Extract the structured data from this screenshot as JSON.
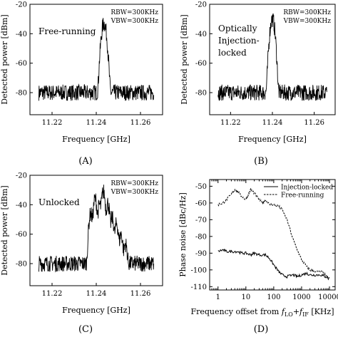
{
  "panels": [
    {
      "caption": "(A)",
      "annotation_lines": [
        "Free-running"
      ],
      "settings": [
        "RBW=300KHz",
        "VBW=300KHz"
      ]
    },
    {
      "caption": "(B)",
      "annotation_lines": [
        "Optically",
        "Injection-",
        "locked"
      ],
      "settings": [
        "RBW=300KHz",
        "VBW=300KHz"
      ]
    },
    {
      "caption": "(C)",
      "annotation_lines": [
        "Unlocked"
      ],
      "settings": [
        "RBW=300KHz",
        "VBW=300KHz"
      ]
    },
    {
      "caption": "(D)",
      "annotation_lines": [],
      "settings": []
    }
  ],
  "chart_data": [
    {
      "type": "line",
      "panel": "A",
      "xlabel": "Frequency [GHz]",
      "ylabel": "Detected power [dBm]",
      "xlim": [
        11.21,
        11.27
      ],
      "ylim": [
        -95,
        -20
      ],
      "x_ticks": [
        11.22,
        11.24,
        11.26
      ],
      "y_ticks": [
        -20,
        -40,
        -60,
        -80
      ],
      "noise_floor_dbm": -80,
      "series": [
        {
          "peaks": [
            {
              "x": 11.2435,
              "y": -33
            }
          ]
        }
      ]
    },
    {
      "type": "line",
      "panel": "B",
      "xlabel": "Frequency [GHz]",
      "ylabel": "Detected power [dBm]",
      "xlim": [
        11.21,
        11.27
      ],
      "ylim": [
        -95,
        -20
      ],
      "x_ticks": [
        11.22,
        11.24,
        11.26
      ],
      "y_ticks": [
        -20,
        -40,
        -60,
        -80
      ],
      "noise_floor_dbm": -80,
      "series": [
        {
          "peaks": [
            {
              "x": 11.24,
              "y": -30
            }
          ]
        }
      ]
    },
    {
      "type": "line",
      "panel": "C",
      "xlabel": "Frequency [GHz]",
      "ylabel": "Detected power [dBm]",
      "xlim": [
        11.21,
        11.27
      ],
      "ylim": [
        -95,
        -20
      ],
      "x_ticks": [
        11.22,
        11.24,
        11.26
      ],
      "y_ticks": [
        -20,
        -40,
        -60,
        -80
      ],
      "noise_floor_dbm": -80,
      "series": [
        {
          "peaks": [
            {
              "x": 11.2375,
              "y": -46
            },
            {
              "x": 11.2395,
              "y": -36
            },
            {
              "x": 11.2415,
              "y": -40
            },
            {
              "x": 11.2432,
              "y": -31
            },
            {
              "x": 11.2452,
              "y": -39
            },
            {
              "x": 11.2472,
              "y": -49
            },
            {
              "x": 11.2492,
              "y": -53
            },
            {
              "x": 11.2512,
              "y": -60
            },
            {
              "x": 11.2532,
              "y": -67
            }
          ]
        }
      ]
    },
    {
      "type": "line",
      "panel": "D",
      "xlabel": "Frequency offset from f_LO+f_IF [KHz]",
      "xlabel_parts": {
        "prefix": "Frequency offset from ",
        "f": "f",
        "sub1": "LO",
        "plus": "+",
        "sub2": "IF",
        "suffix": " [KHz]"
      },
      "ylabel": "Phase noise [dBc/Hz]",
      "x_scale": "log",
      "xlim": [
        0.5,
        16000
      ],
      "ylim": [
        -112,
        -46
      ],
      "x_ticks": [
        1,
        10,
        100,
        1000,
        10000
      ],
      "x_tick_labels": [
        "1",
        "10",
        "100",
        "1000",
        "10000"
      ],
      "y_ticks": [
        -50,
        -60,
        -70,
        -80,
        -90,
        -100,
        -110
      ],
      "legend_position": "top-right",
      "series": [
        {
          "name": "Injection-locked",
          "style": "solid",
          "x": [
            1,
            1.5,
            2,
            3,
            5,
            7,
            10,
            15,
            20,
            30,
            50,
            70,
            100,
            150,
            200,
            300,
            500,
            700,
            1000,
            1500,
            2000,
            3000,
            5000,
            7000,
            10000
          ],
          "y": [
            -89,
            -88,
            -89,
            -89,
            -89,
            -90,
            -90,
            -91,
            -90,
            -91,
            -91,
            -93,
            -97,
            -101,
            -103,
            -104,
            -103,
            -104,
            -103,
            -102,
            -103,
            -103,
            -103,
            -104,
            -105
          ]
        },
        {
          "name": "Free-running",
          "style": "dashed",
          "x": [
            1,
            1.5,
            2,
            3,
            4,
            5,
            7,
            10,
            12,
            15,
            20,
            30,
            40,
            50,
            70,
            100,
            150,
            200,
            300,
            500,
            700,
            1000,
            1500,
            2000,
            3000,
            5000,
            7000,
            10000
          ],
          "y": [
            -61,
            -60,
            -58,
            -55,
            -52,
            -53,
            -56,
            -58,
            -55,
            -52,
            -54,
            -58,
            -60,
            -58,
            -61,
            -61,
            -62,
            -64,
            -70,
            -82,
            -88,
            -94,
            -98,
            -100,
            -101,
            -101,
            -103,
            -106
          ]
        }
      ]
    }
  ]
}
